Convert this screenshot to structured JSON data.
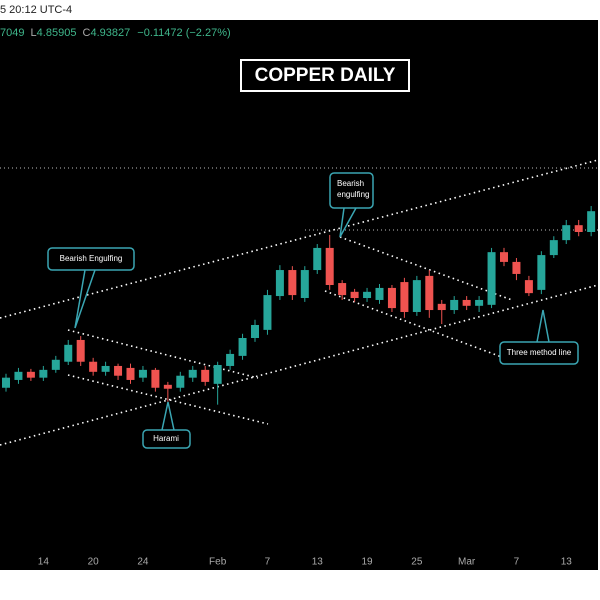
{
  "header": {
    "time": "5 20:12 UTC-4",
    "quote": [
      "7049",
      "L",
      "4.85905",
      "C",
      "4.93827",
      "−0.11472 (−2.27%)"
    ]
  },
  "chart_data": {
    "type": "candlestick",
    "title": "COPPER DAILY",
    "categories": [
      null,
      null,
      null,
      "14",
      null,
      null,
      null,
      "20",
      null,
      null,
      null,
      "24",
      null,
      null,
      null,
      null,
      null,
      "Feb",
      null,
      null,
      null,
      "7",
      null,
      null,
      null,
      "13",
      null,
      null,
      null,
      "19",
      null,
      null,
      null,
      "25",
      null,
      null,
      null,
      "Mar",
      null,
      null,
      null,
      "7",
      null,
      null,
      null,
      "13",
      null,
      null
    ],
    "open": [
      4.409,
      4.433,
      4.458,
      4.44,
      4.464,
      4.489,
      4.556,
      4.489,
      4.458,
      4.476,
      4.47,
      4.44,
      4.464,
      4.418,
      4.409,
      4.44,
      4.464,
      4.421,
      4.476,
      4.507,
      4.562,
      4.587,
      4.691,
      4.771,
      4.685,
      4.771,
      4.839,
      4.731,
      4.704,
      4.685,
      4.679,
      4.716,
      4.734,
      4.642,
      4.753,
      4.667,
      4.648,
      4.679,
      4.661,
      4.664,
      4.826,
      4.796,
      4.74,
      4.71,
      4.817,
      4.863,
      4.909,
      4.888
    ],
    "high": [
      4.452,
      4.47,
      4.467,
      4.476,
      4.507,
      4.556,
      4.568,
      4.501,
      4.489,
      4.483,
      4.483,
      4.476,
      4.47,
      4.427,
      4.458,
      4.476,
      4.476,
      4.489,
      4.526,
      4.575,
      4.618,
      4.71,
      4.786,
      4.783,
      4.783,
      4.851,
      4.879,
      4.74,
      4.713,
      4.716,
      4.728,
      4.725,
      4.747,
      4.753,
      4.771,
      4.679,
      4.691,
      4.691,
      4.691,
      4.839,
      4.839,
      4.808,
      4.753,
      4.829,
      4.875,
      4.925,
      4.925,
      4.968
    ],
    "low": [
      4.397,
      4.421,
      4.43,
      4.43,
      4.455,
      4.479,
      4.476,
      4.446,
      4.446,
      4.433,
      4.421,
      4.427,
      4.397,
      4.366,
      4.397,
      4.427,
      4.415,
      4.357,
      4.464,
      4.495,
      4.55,
      4.572,
      4.679,
      4.679,
      4.673,
      4.759,
      4.71,
      4.679,
      4.673,
      4.673,
      4.667,
      4.642,
      4.624,
      4.63,
      4.624,
      4.605,
      4.636,
      4.648,
      4.642,
      4.654,
      4.783,
      4.74,
      4.691,
      4.697,
      4.808,
      4.851,
      4.875,
      4.875
    ],
    "close": [
      4.44,
      4.458,
      4.44,
      4.464,
      4.495,
      4.541,
      4.489,
      4.458,
      4.476,
      4.446,
      4.433,
      4.464,
      4.409,
      4.406,
      4.446,
      4.464,
      4.427,
      4.479,
      4.513,
      4.562,
      4.602,
      4.694,
      4.771,
      4.694,
      4.771,
      4.839,
      4.725,
      4.694,
      4.685,
      4.704,
      4.716,
      4.654,
      4.642,
      4.74,
      4.648,
      4.648,
      4.679,
      4.661,
      4.679,
      4.826,
      4.796,
      4.759,
      4.7,
      4.817,
      4.863,
      4.909,
      4.888,
      4.952
    ],
    "ylim": [
      3.91,
      5.54
    ],
    "up_color": "#26a69a",
    "down_color": "#ef5350",
    "annotations": [
      [
        "Bearish Engulfing"
      ],
      [
        "Bearish",
        "engulfing"
      ],
      [
        "Harami"
      ],
      [
        "Three method line"
      ]
    ]
  }
}
